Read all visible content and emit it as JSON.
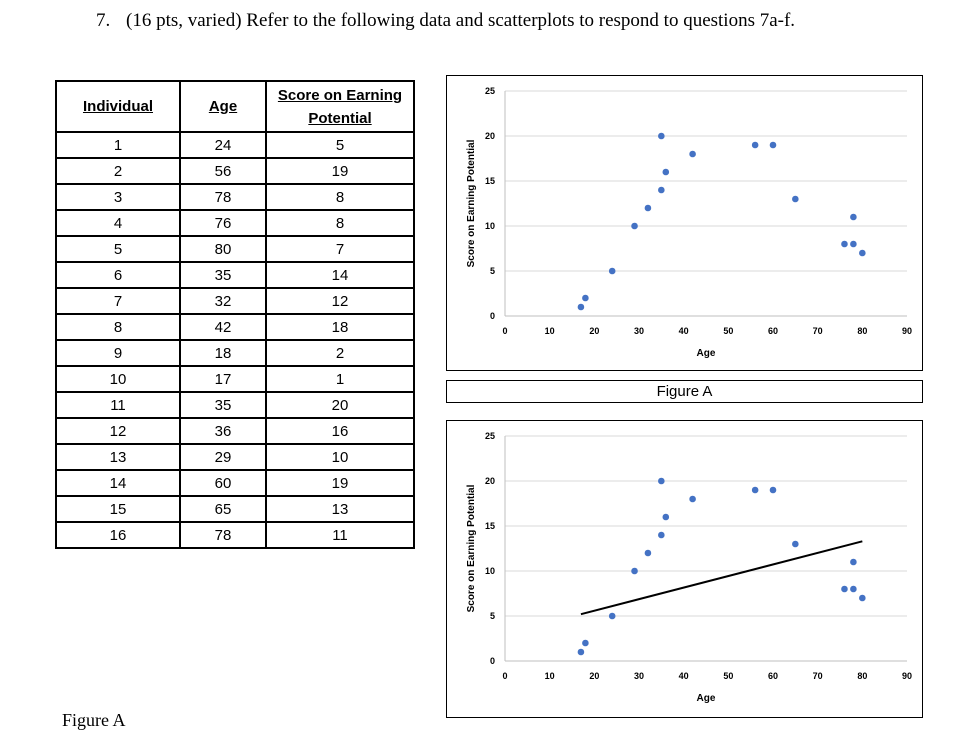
{
  "question": {
    "number": "7.",
    "text": "(16 pts, varied) Refer to the following data and scatterplots to respond to questions 7a-f."
  },
  "table": {
    "headers": [
      "Individual",
      "Age",
      "Score on Earning Potential"
    ],
    "rows": [
      [
        "1",
        "24",
        "5"
      ],
      [
        "2",
        "56",
        "19"
      ],
      [
        "3",
        "78",
        "8"
      ],
      [
        "4",
        "76",
        "8"
      ],
      [
        "5",
        "80",
        "7"
      ],
      [
        "6",
        "35",
        "14"
      ],
      [
        "7",
        "32",
        "12"
      ],
      [
        "8",
        "42",
        "18"
      ],
      [
        "9",
        "18",
        "2"
      ],
      [
        "10",
        "17",
        "1"
      ],
      [
        "11",
        "35",
        "20"
      ],
      [
        "12",
        "36",
        "16"
      ],
      [
        "13",
        "29",
        "10"
      ],
      [
        "14",
        "60",
        "19"
      ],
      [
        "15",
        "65",
        "13"
      ],
      [
        "16",
        "78",
        "11"
      ]
    ]
  },
  "figure_a_caption": "Figure A",
  "bottom_cut_text": "Figure A",
  "chart_data": [
    {
      "type": "scatter",
      "title": "",
      "xlabel": "Age",
      "ylabel": "Score on Earning Potential",
      "xlim": [
        0,
        90
      ],
      "ylim": [
        0,
        25
      ],
      "xticks": [
        0,
        10,
        20,
        30,
        40,
        50,
        60,
        70,
        80,
        90
      ],
      "yticks": [
        0,
        5,
        10,
        15,
        20,
        25
      ],
      "grid": "horizontal",
      "marker_color": "#4472C4",
      "points": [
        [
          24,
          5
        ],
        [
          56,
          19
        ],
        [
          78,
          8
        ],
        [
          76,
          8
        ],
        [
          80,
          7
        ],
        [
          35,
          14
        ],
        [
          32,
          12
        ],
        [
          42,
          18
        ],
        [
          18,
          2
        ],
        [
          17,
          1
        ],
        [
          35,
          20
        ],
        [
          36,
          16
        ],
        [
          29,
          10
        ],
        [
          60,
          19
        ],
        [
          65,
          13
        ],
        [
          78,
          11
        ]
      ]
    },
    {
      "type": "scatter",
      "title": "",
      "xlabel": "Age",
      "ylabel": "Score on Earning Potential",
      "xlim": [
        0,
        90
      ],
      "ylim": [
        0,
        25
      ],
      "xticks": [
        0,
        10,
        20,
        30,
        40,
        50,
        60,
        70,
        80,
        90
      ],
      "yticks": [
        0,
        5,
        10,
        15,
        20,
        25
      ],
      "grid": "horizontal",
      "marker_color": "#4472C4",
      "line_color": "#000000",
      "points": [
        [
          24,
          5
        ],
        [
          56,
          19
        ],
        [
          78,
          8
        ],
        [
          76,
          8
        ],
        [
          80,
          7
        ],
        [
          35,
          14
        ],
        [
          32,
          12
        ],
        [
          42,
          18
        ],
        [
          18,
          2
        ],
        [
          17,
          1
        ],
        [
          35,
          20
        ],
        [
          36,
          16
        ],
        [
          29,
          10
        ],
        [
          60,
          19
        ],
        [
          65,
          13
        ],
        [
          78,
          11
        ]
      ],
      "line": {
        "x": [
          17,
          80
        ],
        "y": [
          5.2,
          13.3
        ]
      }
    }
  ]
}
